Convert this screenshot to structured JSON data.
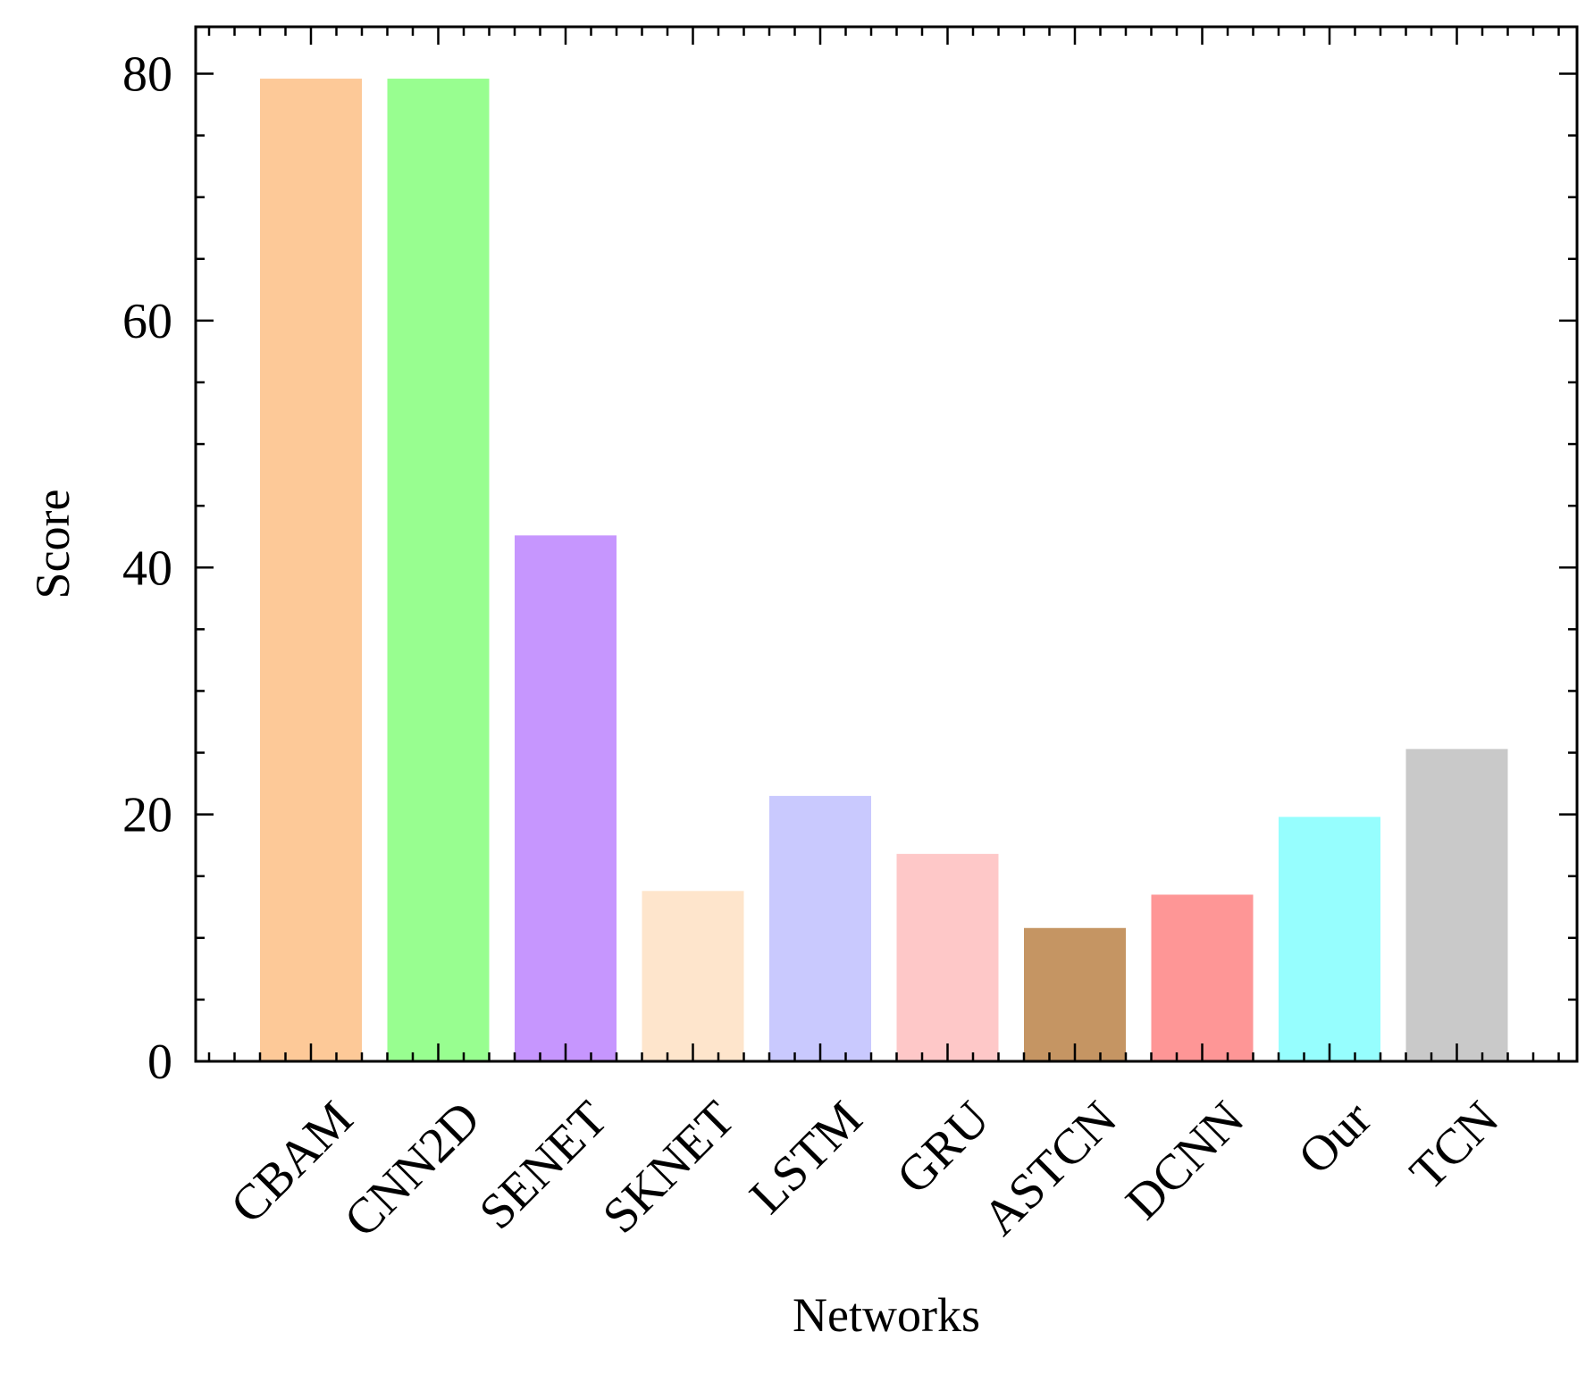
{
  "chart_data": {
    "type": "bar",
    "title": "",
    "xlabel": "Networks",
    "ylabel": "Score",
    "categories": [
      "CBAM",
      "CNN2D",
      "SENET",
      "SKNET",
      "LSTM",
      "GRU",
      "ASTCN",
      "DCNN",
      "Our",
      "TCN"
    ],
    "values": [
      79.6,
      79.6,
      42.6,
      13.8,
      21.5,
      16.8,
      10.8,
      13.5,
      19.8,
      25.3
    ],
    "colors": [
      "#fdc998",
      "#98fe90",
      "#c696fe",
      "#fee5cc",
      "#c9c9fe",
      "#fec8c8",
      "#c59563",
      "#fe9696",
      "#96fefe",
      "#c9c9c9"
    ],
    "ylim": [
      0,
      83.8
    ],
    "yticks": [
      0,
      20,
      40,
      60,
      80
    ],
    "ytick_labels": [
      "0",
      "20",
      "40",
      "60",
      "80"
    ],
    "y_minor_step": 5,
    "grid": false,
    "legend": "none"
  }
}
